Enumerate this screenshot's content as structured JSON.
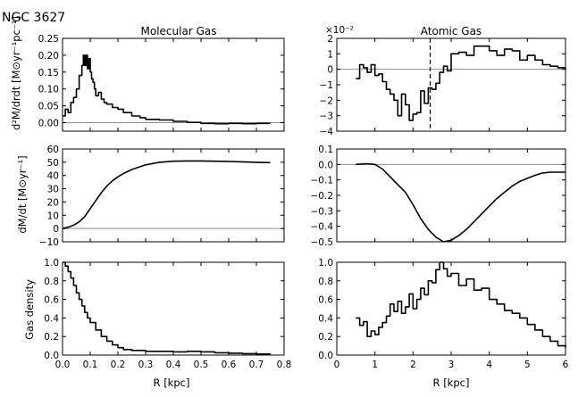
{
  "figure": {
    "title": "NGC 3627",
    "xlabel": "R [kpc]",
    "column_titles": [
      "Molecular Gas",
      "Atomic Gas"
    ],
    "ylabels": [
      "d²M/drdt [M⊙yr⁻¹pc⁻¹]",
      "dM/dt [M⊙yr⁻¹]",
      "Gas density"
    ]
  },
  "chart_data": [
    {
      "id": "mol-d2m",
      "type": "line",
      "step": true,
      "title": "Molecular Gas",
      "ylabel": "d²M/drdt [M⊙yr⁻¹pc⁻¹]",
      "xlim": [
        0,
        0.8
      ],
      "ylim": [
        -0.025,
        0.25
      ],
      "xticks": [
        "0.0",
        "0.1",
        "0.2",
        "0.3",
        "0.4",
        "0.5",
        "0.6",
        "0.7",
        "0.8"
      ],
      "yticks": [
        "0.00",
        "0.05",
        "0.10",
        "0.15",
        "0.20",
        "0.25"
      ],
      "ytick_values": [
        0,
        0.05,
        0.1,
        0.15,
        0.2,
        0.25
      ],
      "zero_line": true,
      "x": [
        0.0,
        0.01,
        0.02,
        0.03,
        0.04,
        0.05,
        0.06,
        0.07,
        0.075,
        0.08,
        0.085,
        0.09,
        0.095,
        0.1,
        0.105,
        0.11,
        0.115,
        0.12,
        0.13,
        0.14,
        0.15,
        0.16,
        0.18,
        0.2,
        0.22,
        0.25,
        0.28,
        0.3,
        0.35,
        0.4,
        0.45,
        0.5,
        0.55,
        0.6,
        0.65,
        0.7,
        0.75
      ],
      "y": [
        0.02,
        0.04,
        0.03,
        0.06,
        0.075,
        0.1,
        0.14,
        0.17,
        0.2,
        0.17,
        0.2,
        0.16,
        0.19,
        0.15,
        0.13,
        0.12,
        0.1,
        0.08,
        0.09,
        0.07,
        0.06,
        0.055,
        0.045,
        0.04,
        0.03,
        0.02,
        0.015,
        0.01,
        0.008,
        0.004,
        0.001,
        -0.002,
        -0.003,
        -0.002,
        -0.003,
        -0.002,
        -0.002
      ]
    },
    {
      "id": "atom-d2m",
      "type": "line",
      "step": true,
      "title": "Atomic Gas",
      "scale_label": "×10⁻²",
      "xlim": [
        0,
        6
      ],
      "ylim": [
        -4,
        2
      ],
      "xticks": [
        "0",
        "1",
        "2",
        "3",
        "4",
        "5",
        "6"
      ],
      "yticks": [
        "−4",
        "−3",
        "−2",
        "−1",
        "0",
        "1",
        "2"
      ],
      "ytick_values": [
        -4,
        -3,
        -2,
        -1,
        0,
        1,
        2
      ],
      "zero_line": true,
      "marker_x": 2.45,
      "x": [
        0.5,
        0.6,
        0.7,
        0.8,
        0.9,
        1.0,
        1.1,
        1.2,
        1.3,
        1.4,
        1.5,
        1.6,
        1.7,
        1.8,
        1.9,
        2.0,
        2.1,
        2.2,
        2.3,
        2.4,
        2.5,
        2.6,
        2.7,
        2.8,
        2.9,
        3.0,
        3.2,
        3.4,
        3.6,
        3.8,
        4.0,
        4.2,
        4.4,
        4.6,
        4.8,
        5.0,
        5.2,
        5.4,
        5.6,
        5.8,
        6.0
      ],
      "y": [
        -0.6,
        0.3,
        0.1,
        -0.2,
        0.3,
        -0.4,
        -0.3,
        -0.8,
        -1.3,
        -1.6,
        -2.0,
        -3.0,
        -1.6,
        -2.3,
        -3.3,
        -2.9,
        -2.8,
        -1.4,
        -2.2,
        -1.2,
        -1.3,
        -0.9,
        -0.2,
        0.2,
        -0.1,
        1.0,
        1.1,
        0.9,
        1.5,
        1.5,
        1.2,
        0.9,
        1.3,
        1.2,
        0.6,
        0.9,
        0.6,
        0.3,
        0.2,
        0.1,
        0.0
      ]
    },
    {
      "id": "mol-dmdt",
      "type": "line",
      "xlim": [
        0,
        0.8
      ],
      "ylim": [
        -10,
        60
      ],
      "xticks": [
        "0.0",
        "0.1",
        "0.2",
        "0.3",
        "0.4",
        "0.5",
        "0.6",
        "0.7",
        "0.8"
      ],
      "yticks": [
        "−10",
        "0",
        "10",
        "20",
        "30",
        "40",
        "50",
        "60"
      ],
      "ytick_values": [
        -10,
        0,
        10,
        20,
        30,
        40,
        50,
        60
      ],
      "zero_line": true,
      "x": [
        0.0,
        0.02,
        0.04,
        0.06,
        0.08,
        0.1,
        0.12,
        0.14,
        0.16,
        0.18,
        0.2,
        0.22,
        0.25,
        0.3,
        0.35,
        0.4,
        0.45,
        0.5,
        0.55,
        0.6,
        0.65,
        0.7,
        0.75
      ],
      "y": [
        0.0,
        1.0,
        2.5,
        5.0,
        9.0,
        15.0,
        21.0,
        27.0,
        32.0,
        36.0,
        39.0,
        41.5,
        44.5,
        48.0,
        50.0,
        50.8,
        51.0,
        51.0,
        50.8,
        50.6,
        50.3,
        50.0,
        49.7
      ]
    },
    {
      "id": "atom-dmdt",
      "type": "line",
      "xlim": [
        0,
        6
      ],
      "ylim": [
        -0.5,
        0.1
      ],
      "xticks": [
        "0",
        "1",
        "2",
        "3",
        "4",
        "5",
        "6"
      ],
      "yticks": [
        "−0.5",
        "−0.4",
        "−0.3",
        "−0.2",
        "−0.1",
        "0.0",
        "0.1"
      ],
      "ytick_values": [
        -0.5,
        -0.4,
        -0.3,
        -0.2,
        -0.1,
        0.0,
        0.1
      ],
      "zero_line": true,
      "x": [
        0.5,
        0.8,
        1.0,
        1.2,
        1.4,
        1.6,
        1.8,
        2.0,
        2.2,
        2.4,
        2.6,
        2.8,
        3.0,
        3.2,
        3.4,
        3.6,
        3.8,
        4.0,
        4.2,
        4.4,
        4.6,
        4.8,
        5.0,
        5.2,
        5.4,
        5.6,
        5.8,
        6.0
      ],
      "y": [
        0.0,
        0.005,
        0.0,
        -0.03,
        -0.08,
        -0.13,
        -0.18,
        -0.26,
        -0.35,
        -0.42,
        -0.47,
        -0.5,
        -0.49,
        -0.46,
        -0.42,
        -0.37,
        -0.32,
        -0.27,
        -0.22,
        -0.18,
        -0.14,
        -0.11,
        -0.09,
        -0.07,
        -0.055,
        -0.05,
        -0.05,
        -0.05
      ]
    },
    {
      "id": "mol-density",
      "type": "line",
      "step": true,
      "ylabel": "Gas density",
      "xlim": [
        0,
        0.8
      ],
      "ylim": [
        0,
        1.0
      ],
      "xticks": [
        "0.0",
        "0.1",
        "0.2",
        "0.3",
        "0.4",
        "0.5",
        "0.6",
        "0.7",
        "0.8"
      ],
      "yticks": [
        "0.0",
        "0.2",
        "0.4",
        "0.6",
        "0.8",
        "1.0"
      ],
      "ytick_values": [
        0,
        0.2,
        0.4,
        0.6,
        0.8,
        1.0
      ],
      "xlabel": "R [kpc]",
      "x": [
        0.0,
        0.01,
        0.02,
        0.03,
        0.04,
        0.05,
        0.06,
        0.07,
        0.08,
        0.09,
        0.1,
        0.12,
        0.14,
        0.16,
        0.18,
        0.2,
        0.22,
        0.25,
        0.3,
        0.35,
        0.4,
        0.45,
        0.5,
        0.55,
        0.6,
        0.65,
        0.7,
        0.75
      ],
      "y": [
        1.0,
        0.96,
        0.9,
        0.83,
        0.75,
        0.67,
        0.6,
        0.53,
        0.46,
        0.4,
        0.35,
        0.27,
        0.2,
        0.15,
        0.11,
        0.08,
        0.06,
        0.05,
        0.04,
        0.04,
        0.035,
        0.04,
        0.035,
        0.025,
        0.02,
        0.015,
        0.012,
        0.01
      ]
    },
    {
      "id": "atom-density",
      "type": "line",
      "step": true,
      "xlim": [
        0,
        6
      ],
      "ylim": [
        0,
        1.0
      ],
      "xticks": [
        "0",
        "1",
        "2",
        "3",
        "4",
        "5",
        "6"
      ],
      "yticks": [
        "0.0",
        "0.2",
        "0.4",
        "0.6",
        "0.8",
        "1.0"
      ],
      "ytick_values": [
        0,
        0.2,
        0.4,
        0.6,
        0.8,
        1.0
      ],
      "xlabel": "R [kpc]",
      "x": [
        0.5,
        0.6,
        0.7,
        0.8,
        0.9,
        1.0,
        1.1,
        1.2,
        1.3,
        1.4,
        1.5,
        1.6,
        1.7,
        1.8,
        1.9,
        2.0,
        2.1,
        2.2,
        2.3,
        2.4,
        2.5,
        2.6,
        2.7,
        2.8,
        2.9,
        3.0,
        3.2,
        3.4,
        3.6,
        3.8,
        4.0,
        4.2,
        4.4,
        4.6,
        4.8,
        5.0,
        5.2,
        5.4,
        5.6,
        5.8,
        6.0
      ],
      "y": [
        0.4,
        0.32,
        0.36,
        0.2,
        0.26,
        0.22,
        0.3,
        0.35,
        0.42,
        0.55,
        0.47,
        0.58,
        0.45,
        0.52,
        0.66,
        0.5,
        0.6,
        0.72,
        0.65,
        0.8,
        0.78,
        0.92,
        1.0,
        0.93,
        0.85,
        0.88,
        0.75,
        0.82,
        0.7,
        0.72,
        0.6,
        0.55,
        0.48,
        0.45,
        0.4,
        0.33,
        0.27,
        0.2,
        0.15,
        0.1,
        0.08
      ]
    }
  ]
}
